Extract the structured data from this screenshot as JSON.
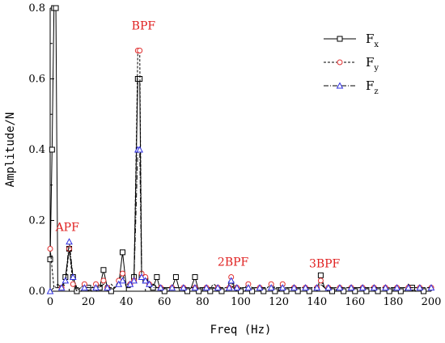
{
  "chart_data": {
    "type": "line",
    "title": "",
    "xlabel": "Freq (Hz)",
    "ylabel": "Amplitude/N",
    "xlim": [
      0,
      200
    ],
    "ylim": [
      0,
      0.8
    ],
    "x_ticks": [
      0,
      20,
      40,
      60,
      80,
      100,
      120,
      140,
      160,
      180,
      200
    ],
    "y_ticks": [
      0.0,
      0.2,
      0.4,
      0.6,
      0.8
    ],
    "grid": false,
    "legend_position": "top-right",
    "series": [
      {
        "name": "Fx",
        "line_style": "solid",
        "marker": "square",
        "x": [
          0,
          1,
          2,
          3,
          4,
          6,
          8,
          10,
          12,
          14,
          16,
          18,
          20,
          22,
          24,
          26,
          28,
          30,
          32,
          34,
          36,
          38,
          40,
          42,
          44,
          46,
          47,
          48,
          50,
          52,
          54,
          56,
          58,
          60,
          62,
          64,
          66,
          68,
          70,
          72,
          74,
          76,
          78,
          80,
          82,
          84,
          86,
          88,
          90,
          92,
          94,
          95,
          96,
          98,
          100,
          102,
          104,
          106,
          108,
          110,
          112,
          114,
          116,
          118,
          120,
          122,
          124,
          126,
          128,
          130,
          132,
          134,
          136,
          138,
          140,
          142,
          144,
          146,
          148,
          150,
          152,
          154,
          156,
          158,
          160,
          162,
          164,
          166,
          168,
          170,
          172,
          174,
          176,
          178,
          180,
          182,
          184,
          186,
          188,
          190,
          192,
          194,
          196,
          198,
          200
        ],
        "y": [
          0.09,
          0.4,
          0.8,
          0.8,
          0.01,
          0.01,
          0.04,
          0.12,
          0.04,
          0.0,
          0.0,
          0.01,
          0.01,
          0.0,
          0.0,
          0.01,
          0.06,
          0.01,
          0.0,
          0.01,
          0.02,
          0.11,
          0.01,
          0.01,
          0.04,
          0.6,
          0.6,
          0.04,
          0.03,
          0.01,
          0.01,
          0.04,
          0.0,
          0.0,
          0.0,
          0.01,
          0.04,
          0.0,
          0.0,
          0.0,
          0.01,
          0.04,
          0.0,
          0.0,
          0.0,
          0.0,
          0.01,
          0.0,
          0.0,
          0.0,
          0.01,
          0.02,
          0.01,
          0.0,
          0.0,
          0.0,
          0.01,
          0.0,
          0.0,
          0.0,
          0.0,
          0.0,
          0.0,
          0.0,
          0.0,
          0.01,
          0.0,
          0.0,
          0.0,
          0.0,
          0.0,
          0.0,
          0.0,
          0.0,
          0.0,
          0.045,
          0.01,
          0.0,
          0.0,
          0.0,
          0.0,
          0.0,
          0.0,
          0.0,
          0.0,
          0.0,
          0.0,
          0.0,
          0.0,
          0.0,
          0.0,
          0.0,
          0.0,
          0.0,
          0.0,
          0.0,
          0.0,
          0.0,
          0.02,
          0.01,
          0.0,
          0.0,
          0.0,
          0.0,
          0.0
        ]
      },
      {
        "name": "Fy",
        "line_style": "dashed",
        "marker": "circle",
        "color_marker": "#e03030",
        "x": [
          0,
          2,
          4,
          6,
          8,
          10,
          12,
          14,
          16,
          18,
          20,
          22,
          24,
          26,
          28,
          30,
          32,
          34,
          36,
          38,
          40,
          42,
          44,
          46,
          47,
          48,
          50,
          52,
          54,
          56,
          58,
          60,
          62,
          64,
          66,
          68,
          70,
          72,
          74,
          76,
          78,
          80,
          82,
          84,
          86,
          88,
          90,
          92,
          94,
          95,
          96,
          98,
          100,
          102,
          104,
          106,
          108,
          110,
          112,
          114,
          116,
          118,
          120,
          122,
          124,
          126,
          128,
          130,
          132,
          134,
          136,
          138,
          140,
          142,
          144,
          146,
          148,
          150,
          152,
          154,
          156,
          158,
          160,
          162,
          164,
          166,
          168,
          170,
          172,
          174,
          176,
          178,
          180,
          182,
          184,
          186,
          188,
          190,
          192,
          194,
          196,
          198,
          200
        ],
        "y": [
          0.12,
          0.01,
          0.01,
          0.01,
          0.02,
          0.12,
          0.02,
          0.0,
          0.01,
          0.02,
          0.01,
          0.01,
          0.02,
          0.01,
          0.03,
          0.01,
          0.02,
          0.01,
          0.03,
          0.05,
          0.01,
          0.02,
          0.03,
          0.68,
          0.68,
          0.05,
          0.04,
          0.02,
          0.02,
          0.01,
          0.01,
          0.01,
          0.01,
          0.01,
          0.01,
          0.01,
          0.01,
          0.01,
          0.01,
          0.01,
          0.01,
          0.01,
          0.01,
          0.01,
          0.02,
          0.01,
          0.01,
          0.01,
          0.01,
          0.04,
          0.02,
          0.01,
          0.01,
          0.01,
          0.02,
          0.01,
          0.01,
          0.01,
          0.01,
          0.01,
          0.02,
          0.01,
          0.01,
          0.02,
          0.01,
          0.01,
          0.01,
          0.01,
          0.01,
          0.01,
          0.01,
          0.01,
          0.01,
          0.03,
          0.01,
          0.01,
          0.01,
          0.01,
          0.01,
          0.01,
          0.01,
          0.01,
          0.01,
          0.01,
          0.01,
          0.01,
          0.01,
          0.01,
          0.01,
          0.01,
          0.01,
          0.01,
          0.01,
          0.01,
          0.01,
          0.01,
          0.01,
          0.01,
          0.01,
          0.01,
          0.01,
          0.01,
          0.01
        ]
      },
      {
        "name": "Fz",
        "line_style": "dash-dot",
        "marker": "triangle",
        "color_marker": "#3030e0",
        "x": [
          0,
          2,
          4,
          6,
          8,
          10,
          12,
          14,
          16,
          18,
          20,
          22,
          24,
          26,
          28,
          30,
          32,
          34,
          36,
          38,
          40,
          42,
          44,
          46,
          47,
          48,
          50,
          52,
          54,
          56,
          58,
          60,
          62,
          64,
          66,
          68,
          70,
          72,
          74,
          76,
          78,
          80,
          82,
          84,
          86,
          88,
          90,
          92,
          94,
          95,
          96,
          98,
          100,
          102,
          104,
          106,
          108,
          110,
          112,
          114,
          116,
          118,
          120,
          122,
          124,
          126,
          128,
          130,
          132,
          134,
          136,
          138,
          140,
          142,
          144,
          146,
          148,
          150,
          152,
          154,
          156,
          158,
          160,
          162,
          164,
          166,
          168,
          170,
          172,
          174,
          176,
          178,
          180,
          182,
          184,
          186,
          188,
          190,
          192,
          194,
          196,
          198,
          200
        ],
        "y": [
          0.0,
          0.01,
          0.02,
          0.01,
          0.03,
          0.14,
          0.04,
          0.01,
          0.01,
          0.01,
          0.01,
          0.01,
          0.01,
          0.01,
          0.02,
          0.01,
          0.01,
          0.01,
          0.02,
          0.03,
          0.02,
          0.02,
          0.03,
          0.4,
          0.4,
          0.04,
          0.03,
          0.02,
          0.01,
          0.01,
          0.01,
          0.01,
          0.01,
          0.01,
          0.01,
          0.01,
          0.01,
          0.01,
          0.01,
          0.01,
          0.01,
          0.01,
          0.01,
          0.01,
          0.01,
          0.01,
          0.01,
          0.01,
          0.01,
          0.03,
          0.01,
          0.01,
          0.01,
          0.01,
          0.01,
          0.01,
          0.01,
          0.01,
          0.01,
          0.01,
          0.01,
          0.01,
          0.01,
          0.01,
          0.01,
          0.01,
          0.01,
          0.01,
          0.01,
          0.01,
          0.01,
          0.01,
          0.01,
          0.02,
          0.01,
          0.01,
          0.01,
          0.01,
          0.01,
          0.01,
          0.01,
          0.01,
          0.01,
          0.01,
          0.01,
          0.01,
          0.01,
          0.01,
          0.01,
          0.01,
          0.01,
          0.01,
          0.01,
          0.01,
          0.01,
          0.01,
          0.01,
          0.01,
          0.01,
          0.01,
          0.01,
          0.01,
          0.01
        ]
      }
    ],
    "legend": [
      {
        "label_base": "F",
        "label_sub": "x"
      },
      {
        "label_base": "F",
        "label_sub": "y"
      },
      {
        "label_base": "F",
        "label_sub": "z"
      }
    ],
    "annotations": [
      {
        "text": "BPF",
        "x": 49,
        "y": 0.74
      },
      {
        "text": "APF",
        "x": 9,
        "y": 0.17
      },
      {
        "text": "2BPF",
        "x": 96,
        "y": 0.072
      },
      {
        "text": "3BPF",
        "x": 144,
        "y": 0.067
      }
    ],
    "annotation_color": "#e02020"
  }
}
